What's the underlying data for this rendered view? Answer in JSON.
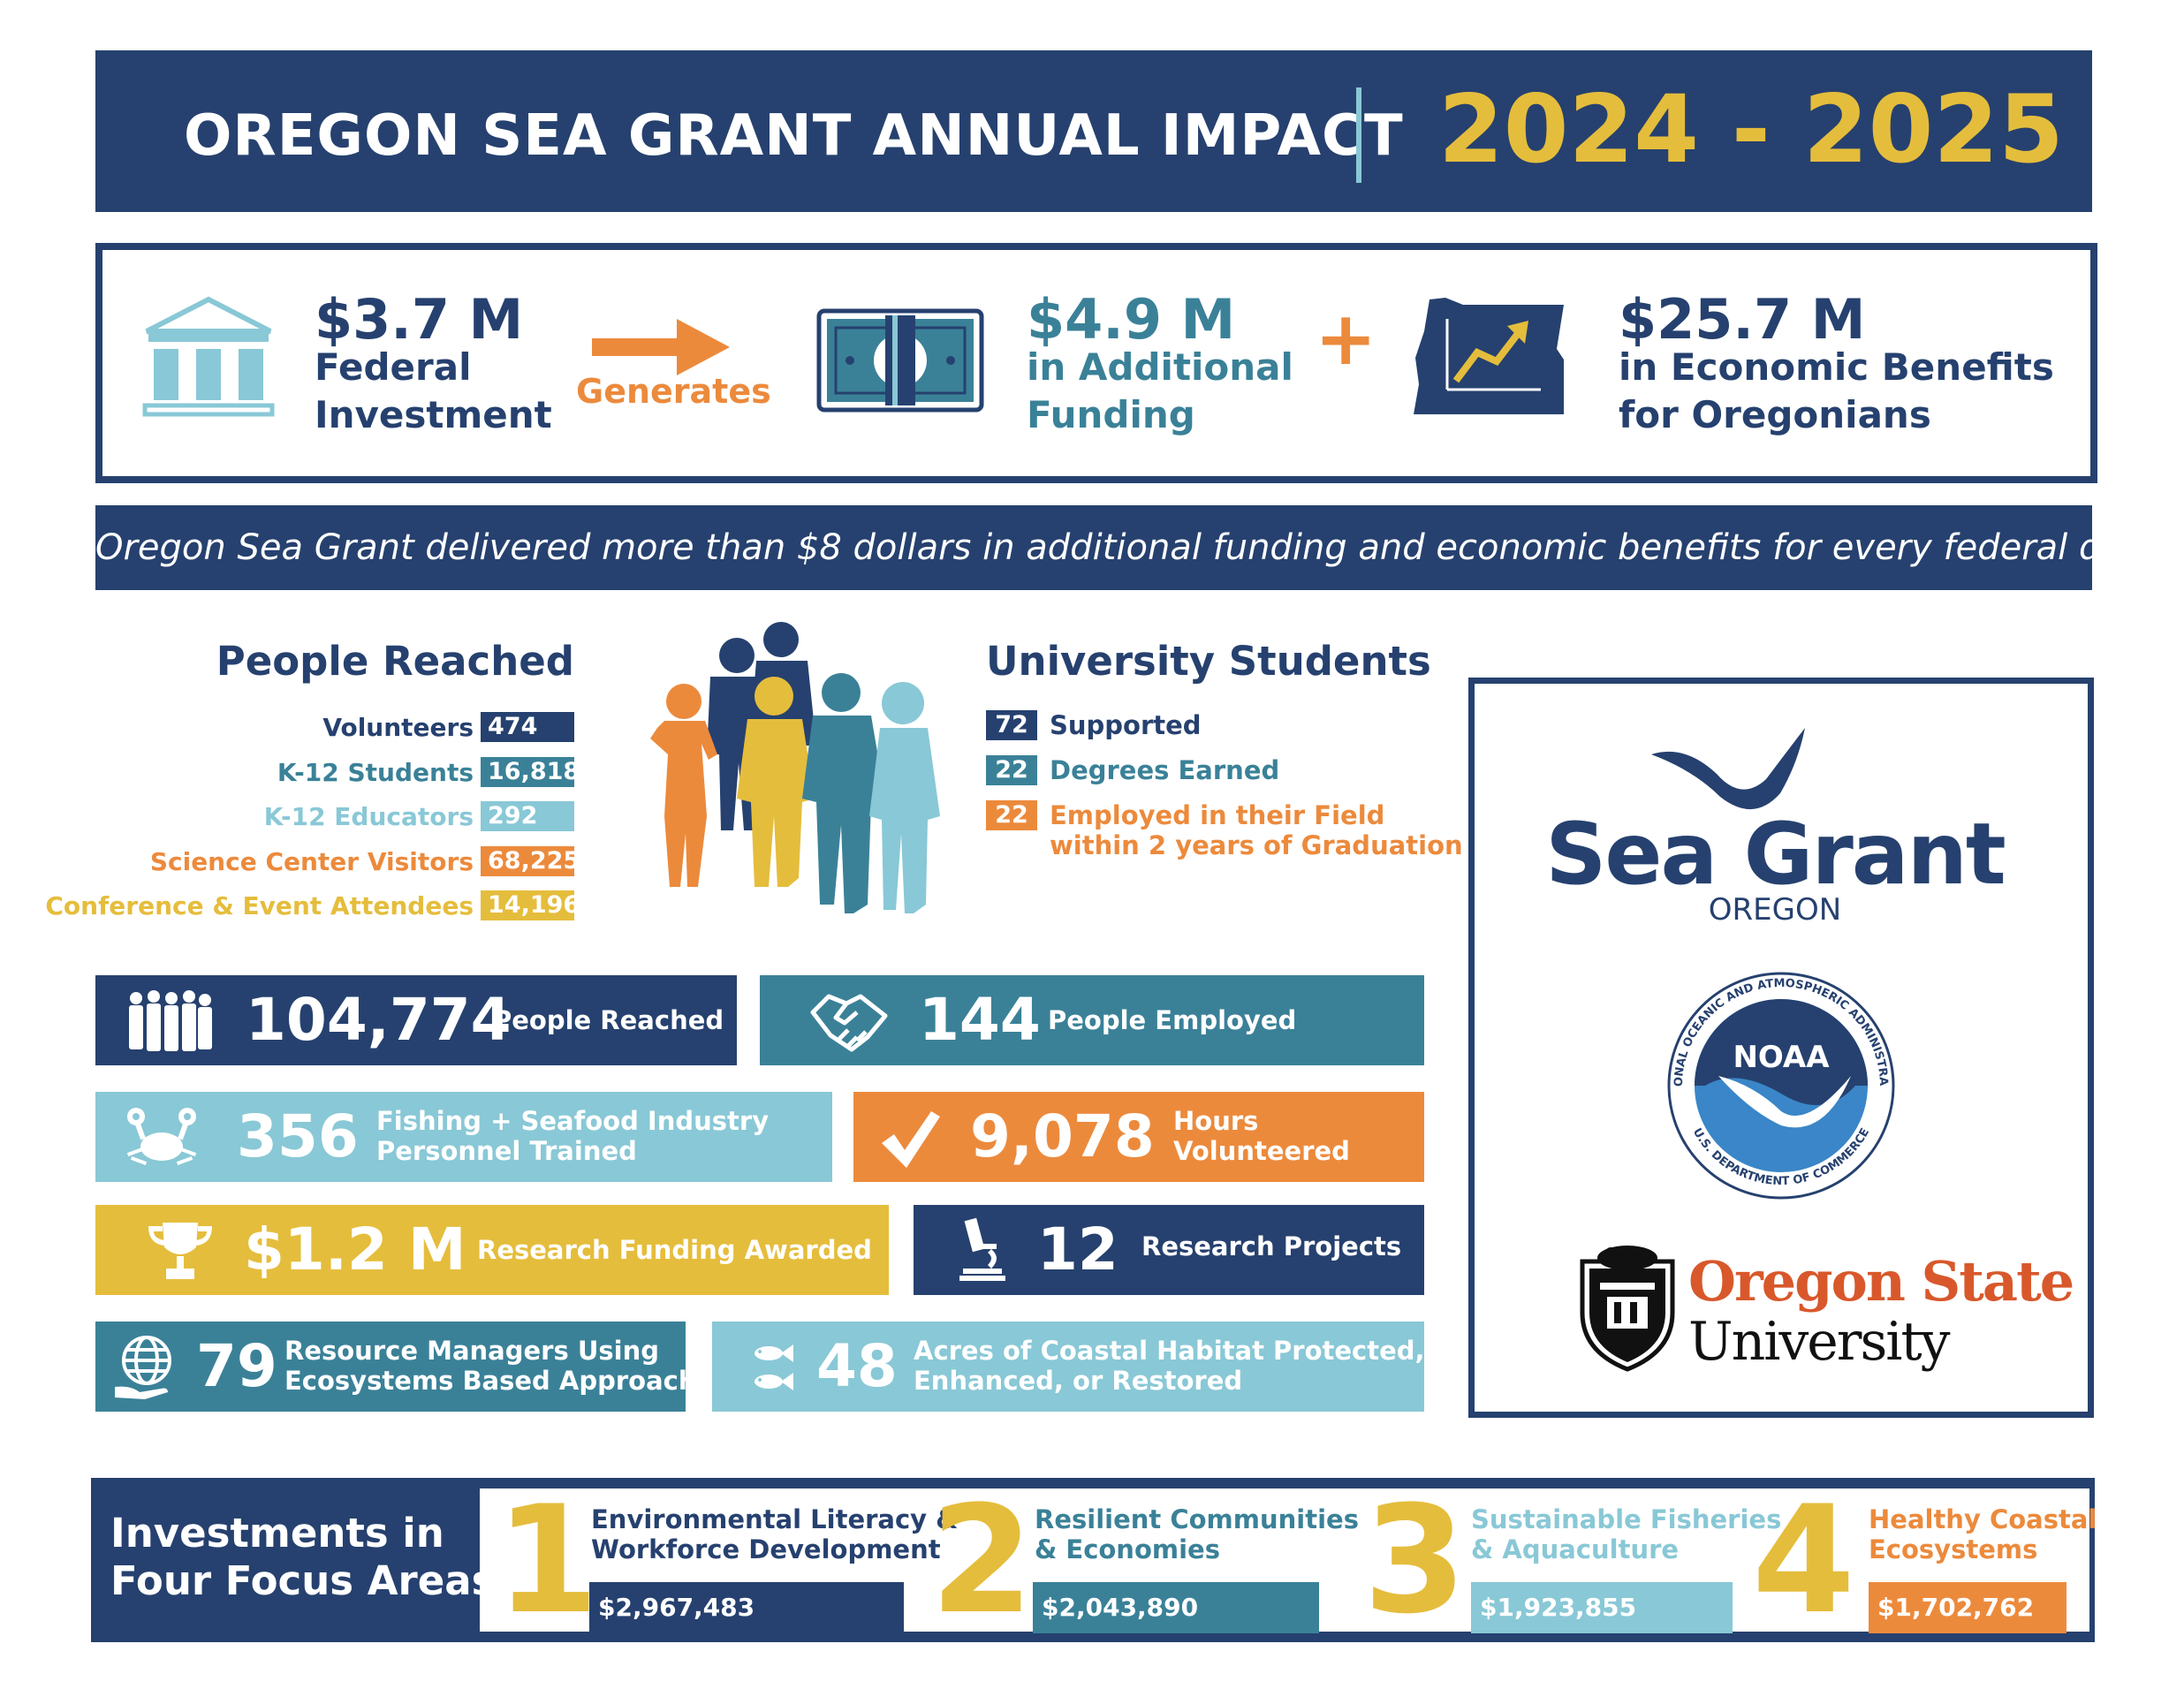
{
  "header": {
    "title": "OREGON SEA GRANT ANNUAL IMPACT",
    "years": "2024 - 2025"
  },
  "funding": {
    "federal": {
      "amount": "$3.7 M",
      "line1": "Federal",
      "line2": "Investment",
      "icon": "bank-building-icon"
    },
    "generates": "Generates",
    "additional": {
      "amount": "$4.9 M",
      "line1": "in Additional",
      "line2": "Funding",
      "icon": "cash-bill-icon"
    },
    "plus": "+",
    "economic": {
      "amount": "$25.7 M",
      "line1": "in Economic Benefits",
      "line2": "for Oregonians",
      "icon": "oregon-growth-icon"
    }
  },
  "tagline": "Oregon Sea Grant delivered more than $8 dollars in additional funding and economic benefits for every federal dollar",
  "people_reached": {
    "title": "People Reached",
    "rows": [
      {
        "label": "Volunteers",
        "value": "474",
        "color": "#26416f"
      },
      {
        "label": "K-12 Students",
        "value": "16,818",
        "color": "#3a8198"
      },
      {
        "label": "K-12 Educators",
        "value": "292",
        "color": "#89c8d6"
      },
      {
        "label": "Science Center Visitors",
        "value": "68,225",
        "color": "#ec8a3c"
      },
      {
        "label": "Conference & Event Attendees",
        "value": "14,196",
        "color": "#e5bd3c"
      }
    ]
  },
  "university_students": {
    "title": "University Students",
    "rows": [
      {
        "value": "72",
        "label": "Supported",
        "color": "#26416f"
      },
      {
        "value": "22",
        "label": "Degrees Earned",
        "color": "#3a8198"
      },
      {
        "value": "22",
        "label": "Employed in their Field",
        "label2": "within 2 years of Graduation",
        "color": "#ec8a3c"
      }
    ]
  },
  "tiles": {
    "people_reached": {
      "value": "104,774",
      "label": "People Reached",
      "icon": "people-group-icon"
    },
    "people_employed": {
      "value": "144",
      "label": "People Employed",
      "icon": "handshake-icon"
    },
    "trained": {
      "value": "356",
      "label1": "Fishing + Seafood Industry",
      "label2": "Personnel Trained",
      "icon": "crab-icon"
    },
    "hours": {
      "value": "9,078",
      "label1": "Hours",
      "label2": "Volunteered",
      "icon": "checkmark-icon"
    },
    "research_funding": {
      "value": "$1.2 M",
      "label": "Research Funding Awarded",
      "icon": "trophy-icon"
    },
    "research_projects": {
      "value": "12",
      "label": "Research Projects",
      "icon": "microscope-icon"
    },
    "resource_managers": {
      "value": "79",
      "label1": "Resource Managers Using",
      "label2": "Ecosystems Based Approaches",
      "icon": "globe-hand-icon"
    },
    "acres": {
      "value": "48",
      "label1": "Acres of Coastal Habitat Protected,",
      "label2": "Enhanced, or Restored",
      "icon": "fish-icon"
    }
  },
  "logos": {
    "sea_grant": {
      "name": "Sea Grant",
      "sub": "OREGON"
    },
    "noaa": {
      "center": "NOAA",
      "ring": "NATIONAL OCEANIC AND ATMOSPHERIC ADMINISTRATION",
      "ring_bottom": "U.S. DEPARTMENT OF COMMERCE"
    },
    "osu": {
      "line1": "Oregon State",
      "line2": "University"
    }
  },
  "focus_areas": {
    "title1": "Investments in",
    "title2": "Four Focus Areas",
    "items": [
      {
        "num": "1",
        "line1": "Environmental Literacy &",
        "line2": "Workforce Development",
        "amount": "$2,967,483",
        "color": "#26416f"
      },
      {
        "num": "2",
        "line1": "Resilient Communities",
        "line2": "& Economies",
        "amount": "$2,043,890",
        "color": "#3a8198"
      },
      {
        "num": "3",
        "line1": "Sustainable Fisheries",
        "line2": "& Aquaculture",
        "amount": "$1,923,855",
        "color": "#89c8d6"
      },
      {
        "num": "4",
        "line1": "Healthy Coastal",
        "line2": "Ecosystems",
        "amount": "$1,702,762",
        "color": "#ec8a3c"
      }
    ]
  }
}
